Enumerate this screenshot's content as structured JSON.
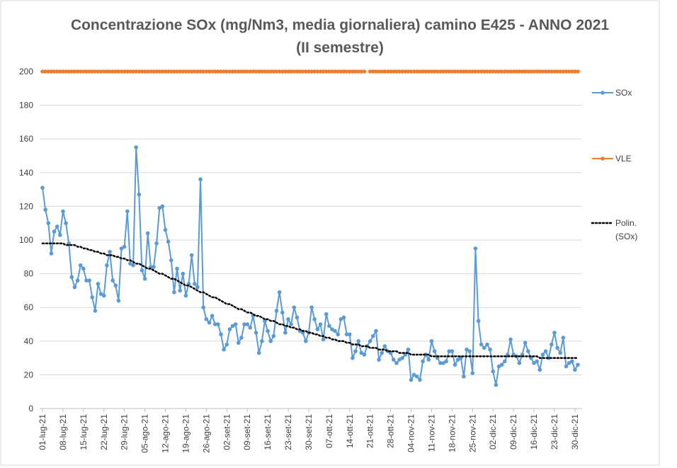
{
  "chart_data": {
    "type": "line",
    "title": "Concentrazione SOx (mg/Nm3, media giornaliera) camino E425 - ANNO 2021",
    "subtitle": "(II semestre)",
    "categories": [
      "01-lug-21",
      null,
      null,
      null,
      null,
      null,
      null,
      "08-lug-21",
      null,
      null,
      null,
      null,
      null,
      null,
      "15-lug-21",
      null,
      null,
      null,
      null,
      null,
      null,
      "22-lug-21",
      null,
      null,
      null,
      null,
      null,
      null,
      "29-lug-21",
      null,
      null,
      null,
      null,
      null,
      null,
      "05-ago-21",
      null,
      null,
      null,
      null,
      null,
      null,
      "12-ago-21",
      null,
      null,
      null,
      null,
      null,
      null,
      "19-ago-21",
      null,
      null,
      null,
      null,
      null,
      null,
      "26-ago-21",
      null,
      null,
      null,
      null,
      null,
      null,
      "02-set-21",
      null,
      null,
      null,
      null,
      null,
      null,
      "09-set-21",
      null,
      null,
      null,
      null,
      null,
      null,
      "16-set-21",
      null,
      null,
      null,
      null,
      null,
      null,
      "23-set-21",
      null,
      null,
      null,
      null,
      null,
      null,
      "30-set-21",
      null,
      null,
      null,
      null,
      null,
      null,
      "07-ott-21",
      null,
      null,
      null,
      null,
      null,
      null,
      "14-ott-21",
      null,
      null,
      null,
      null,
      null,
      null,
      "21-ott-21",
      null,
      null,
      null,
      null,
      null,
      null,
      "28-ott-21",
      null,
      null,
      null,
      null,
      null,
      null,
      "04-nov-21",
      null,
      null,
      null,
      null,
      null,
      null,
      "11-nov-21",
      null,
      null,
      null,
      null,
      null,
      null,
      "18-nov-21",
      null,
      null,
      null,
      null,
      null,
      null,
      "25-nov-21",
      null,
      null,
      null,
      null,
      null,
      null,
      "02-dic-21",
      null,
      null,
      null,
      null,
      null,
      null,
      "09-dic-21",
      null,
      null,
      null,
      null,
      null,
      null,
      "16-dic-21",
      null,
      null,
      null,
      null,
      null,
      null,
      "23-dic-21",
      null,
      null,
      null,
      null,
      null,
      null,
      "30-dic-21",
      null
    ],
    "series": [
      {
        "name": "SOx",
        "color": "#5b9bd5",
        "marker": true,
        "style": "solid",
        "values": [
          131,
          118,
          110,
          92,
          105,
          108,
          103,
          117,
          110,
          98,
          78,
          72,
          76,
          85,
          83,
          76,
          76,
          66,
          58,
          74,
          68,
          67,
          85,
          93,
          76,
          73,
          64,
          95,
          96,
          117,
          86,
          85,
          155,
          127,
          82,
          77,
          104,
          84,
          84,
          98,
          119,
          120,
          106,
          99,
          88,
          69,
          83,
          70,
          80,
          67,
          74,
          91,
          74,
          72,
          136,
          60,
          53,
          51,
          55,
          50,
          50,
          44,
          35,
          38,
          47,
          49,
          50,
          39,
          42,
          50,
          50,
          48,
          55,
          45,
          33,
          40,
          52,
          46,
          40,
          43,
          58,
          69,
          57,
          45,
          53,
          50,
          60,
          54,
          46,
          45,
          40,
          45,
          60,
          53,
          47,
          50,
          41,
          56,
          49,
          47,
          46,
          44,
          53,
          54,
          44,
          44,
          30,
          34,
          40,
          33,
          32,
          37,
          40,
          43,
          46,
          29,
          33,
          37,
          34,
          33,
          29,
          27,
          29,
          30,
          32,
          35,
          17,
          20,
          19,
          17,
          28,
          32,
          29,
          40,
          34,
          30,
          27,
          27,
          28,
          34,
          34,
          26,
          29,
          30,
          19,
          35,
          34,
          21,
          95,
          52,
          38,
          36,
          38,
          35,
          22,
          14,
          25,
          26,
          28,
          32,
          41,
          32,
          31,
          27,
          32,
          39,
          34,
          30,
          27,
          28,
          23,
          32,
          34,
          30,
          38,
          45,
          36,
          33,
          42,
          25,
          27,
          28,
          23,
          26
        ]
      },
      {
        "name": "VLE",
        "color": "#ed7d31",
        "marker": true,
        "style": "solid",
        "values": [
          200,
          200,
          200,
          200,
          200,
          200,
          200,
          200,
          200,
          200,
          200,
          200,
          200,
          200,
          200,
          200,
          200,
          200,
          200,
          200,
          200,
          200,
          200,
          200,
          200,
          200,
          200,
          200,
          200,
          200,
          200,
          200,
          200,
          200,
          200,
          200,
          200,
          200,
          200,
          200,
          200,
          200,
          200,
          200,
          200,
          200,
          200,
          200,
          200,
          200,
          200,
          200,
          200,
          200,
          200,
          200,
          200,
          200,
          200,
          200,
          200,
          200,
          200,
          200,
          200,
          200,
          200,
          200,
          200,
          200,
          200,
          200,
          200,
          200,
          200,
          200,
          200,
          200,
          200,
          200,
          200,
          200,
          200,
          200,
          200,
          200,
          200,
          200,
          200,
          200,
          200,
          200,
          200,
          200,
          200,
          200,
          200,
          200,
          200,
          200,
          200,
          200,
          200,
          200,
          200,
          200,
          200,
          200,
          200,
          200,
          200,
          null,
          200,
          200,
          200,
          200,
          200,
          200,
          200,
          200,
          200,
          200,
          200,
          200,
          200,
          200,
          200,
          200,
          200,
          200,
          200,
          200,
          200,
          200,
          200,
          200,
          200,
          200,
          200,
          200,
          200,
          200,
          200,
          200,
          200,
          200,
          200,
          200,
          200,
          200,
          200,
          200,
          200,
          200,
          200,
          200,
          200,
          200,
          200,
          200,
          200,
          200,
          200,
          200,
          200,
          200,
          200,
          200,
          200,
          200,
          200,
          200,
          200,
          200,
          200,
          200,
          200,
          200,
          200,
          200,
          200,
          200,
          200,
          200
        ]
      },
      {
        "name": "Polin. (SOx)",
        "color": "#000000",
        "marker": false,
        "style": "dotted",
        "values": [
          98,
          98,
          98,
          98,
          98,
          98,
          98,
          98,
          97,
          97,
          97,
          97,
          96,
          96,
          95,
          95,
          94,
          94,
          93,
          93,
          92,
          92,
          91,
          91,
          91,
          90,
          90,
          89,
          89,
          88,
          88,
          87,
          86,
          86,
          85,
          84,
          83,
          83,
          82,
          81,
          80,
          80,
          79,
          78,
          77,
          77,
          76,
          75,
          74,
          73,
          73,
          72,
          71,
          70,
          69,
          69,
          68,
          67,
          66,
          66,
          65,
          64,
          63,
          62,
          62,
          61,
          60,
          59,
          59,
          58,
          57,
          57,
          56,
          55,
          55,
          54,
          53,
          53,
          52,
          52,
          51,
          50,
          50,
          49,
          49,
          48,
          48,
          47,
          47,
          46,
          46,
          45,
          45,
          44,
          44,
          43,
          43,
          42,
          42,
          41,
          41,
          40,
          40,
          40,
          39,
          39,
          38,
          38,
          38,
          37,
          37,
          37,
          36,
          36,
          36,
          35,
          35,
          35,
          34,
          34,
          34,
          34,
          33,
          33,
          33,
          33,
          32,
          32,
          32,
          32,
          32,
          32,
          32,
          31,
          31,
          31,
          31,
          31,
          31,
          31,
          31,
          31,
          31,
          31,
          31,
          31,
          31,
          31,
          31,
          31,
          31,
          31,
          31,
          31,
          31,
          31,
          31,
          31,
          31,
          31,
          31,
          31,
          31,
          31,
          31,
          31,
          31,
          31,
          31,
          31,
          30,
          30,
          30,
          30,
          30,
          30,
          30,
          30,
          30,
          30,
          30,
          30,
          30,
          30
        ]
      }
    ],
    "ylim": [
      0,
      200
    ],
    "yticks": [
      0,
      20,
      40,
      60,
      80,
      100,
      120,
      140,
      160,
      180,
      200
    ],
    "grid": true,
    "legend": "right"
  }
}
